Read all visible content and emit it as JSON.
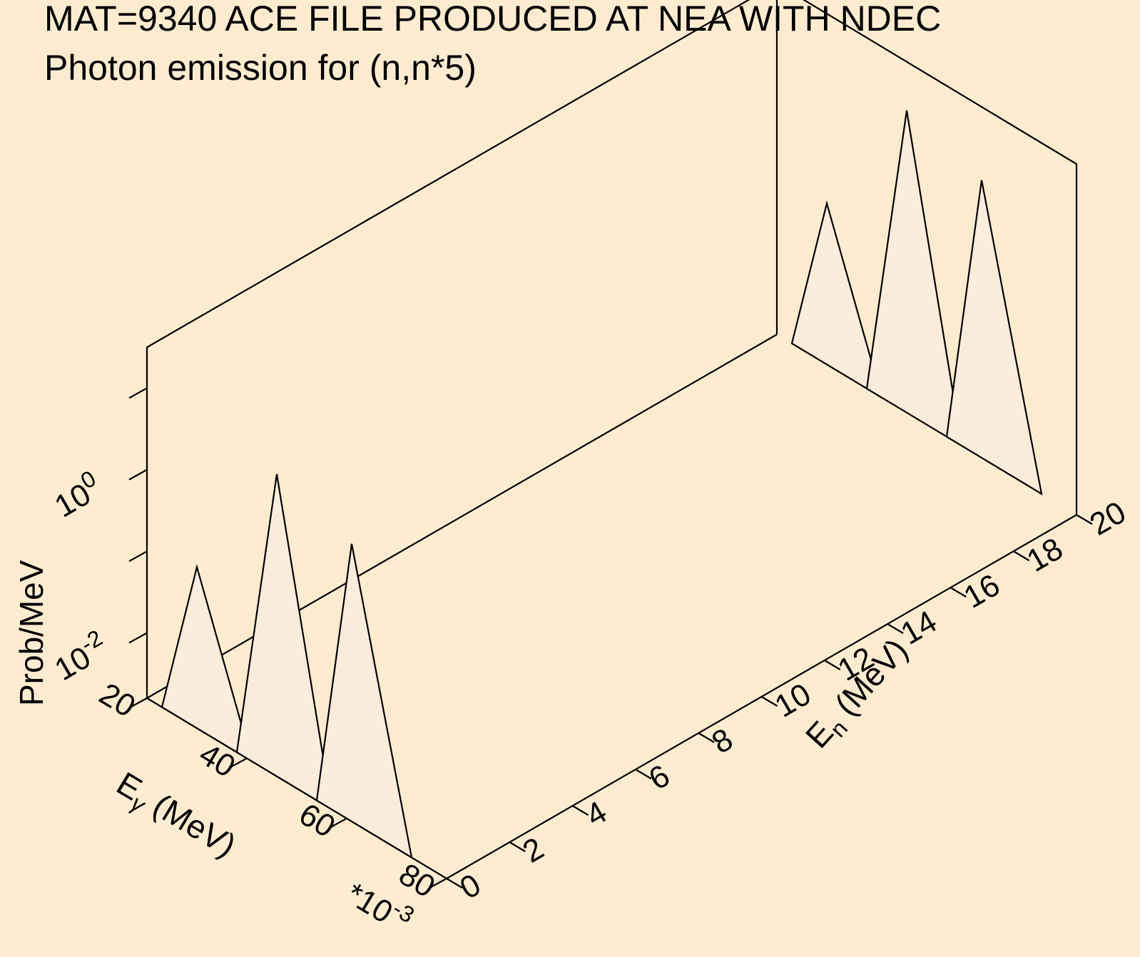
{
  "chart_data": {
    "type": "3d-waterfall",
    "title": "MAT=9340 ACE FILE PRODUCED AT NEA WITH NDEC",
    "subtitle": "Photon emission for (n,n*5)",
    "x_axis": {
      "label": "E",
      "subscript": "γ",
      "unit": " (MeV)",
      "multiplier_base": "*10",
      "multiplier_exp": "-3",
      "range": [
        20,
        80
      ],
      "ticks": [
        "20",
        "40",
        "60",
        "80"
      ]
    },
    "y_axis": {
      "label": "E",
      "subscript": "n",
      "unit": " (MeV)",
      "range": [
        0,
        20
      ],
      "ticks": [
        "0",
        "2",
        "4",
        "6",
        "8",
        "10",
        "12",
        "14",
        "16",
        "18",
        "20"
      ]
    },
    "z_axis": {
      "label": "Prob/MeV",
      "scale": "log",
      "range_decades": [
        -2.8,
        1.5
      ],
      "ticks": [
        {
          "base": "10",
          "exp": "-2"
        },
        {
          "base": "10",
          "exp": "0"
        }
      ]
    },
    "series": [
      {
        "En": 0,
        "peaks": [
          {
            "left": 23,
            "center": 30,
            "right": 41,
            "value": 0.15
          },
          {
            "left": 38,
            "center": 46,
            "right": 57,
            "value": 8.0
          },
          {
            "left": 54,
            "center": 61,
            "right": 73,
            "value": 4.0
          }
        ]
      },
      {
        "En": 20,
        "peaks": [
          {
            "left": 23,
            "center": 30,
            "right": 41,
            "value": 0.15
          },
          {
            "left": 38,
            "center": 46,
            "right": 57,
            "value": 8.0
          },
          {
            "left": 54,
            "center": 61,
            "right": 73,
            "value": 4.0
          }
        ]
      }
    ]
  }
}
